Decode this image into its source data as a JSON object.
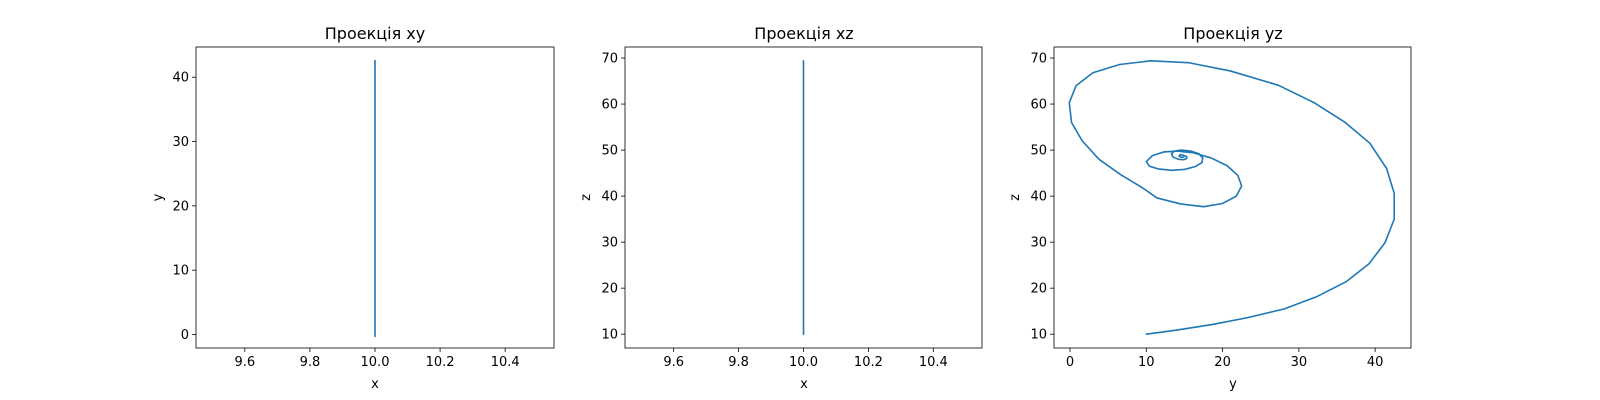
{
  "chart_data": [
    {
      "type": "line",
      "title": "Проекція xy",
      "xlabel": "x",
      "ylabel": "y",
      "xlim": [
        9.45,
        10.55
      ],
      "ylim": [
        -2.1,
        44.7
      ],
      "xticks": [
        9.6,
        9.8,
        10.0,
        10.2,
        10.4
      ],
      "xtick_labels": [
        "9.6",
        "9.8",
        "10.0",
        "10.2",
        "10.4"
      ],
      "yticks": [
        0,
        10,
        20,
        30,
        40
      ],
      "ytick_labels": [
        "0",
        "10",
        "20",
        "30",
        "40"
      ],
      "grid": false,
      "color": "#1f77b4",
      "series": [
        {
          "x": [
            10.0,
            10.0
          ],
          "y": [
            -0.3,
            42.6
          ]
        }
      ]
    },
    {
      "type": "line",
      "title": "Проекція xz",
      "xlabel": "x",
      "ylabel": "z",
      "xlim": [
        9.45,
        10.55
      ],
      "ylim": [
        7.0,
        72.4
      ],
      "xticks": [
        9.6,
        9.8,
        10.0,
        10.2,
        10.4
      ],
      "xtick_labels": [
        "9.6",
        "9.8",
        "10.0",
        "10.2",
        "10.4"
      ],
      "yticks": [
        10,
        20,
        30,
        40,
        50,
        60,
        70
      ],
      "ytick_labels": [
        "10",
        "20",
        "30",
        "40",
        "50",
        "60",
        "70"
      ],
      "grid": false,
      "color": "#1f77b4",
      "series": [
        {
          "x": [
            10.0,
            10.0
          ],
          "y": [
            10.0,
            69.4
          ]
        }
      ]
    },
    {
      "type": "line",
      "title": "Проекція yz",
      "xlabel": "y",
      "ylabel": "z",
      "xlim": [
        -2.1,
        44.7
      ],
      "ylim": [
        7.0,
        72.4
      ],
      "xticks": [
        0,
        10,
        20,
        30,
        40
      ],
      "xtick_labels": [
        "0",
        "10",
        "20",
        "30",
        "40"
      ],
      "yticks": [
        10,
        20,
        30,
        40,
        50,
        60,
        70
      ],
      "ytick_labels": [
        "10",
        "20",
        "30",
        "40",
        "50",
        "60",
        "70"
      ],
      "grid": false,
      "color": "#1f77b4",
      "series": [
        {
          "description_free_points": true,
          "x": [
            10.0,
            14.0,
            18.6,
            23.3,
            28.1,
            32.4,
            36.2,
            39.2,
            41.3,
            42.5,
            42.5,
            41.5,
            39.3,
            36.0,
            32.0,
            27.3,
            21.0,
            15.5,
            10.6,
            6.5,
            3.0,
            0.8,
            -0.1,
            0.2,
            1.6,
            3.8,
            6.7,
            9.5,
            11.4,
            14.5,
            17.5,
            20.0,
            21.8,
            22.5,
            22.0,
            20.6,
            18.5,
            16.2,
            14.0,
            12.3,
            10.8,
            10.0,
            10.4,
            11.6,
            13.3,
            15.0,
            16.4,
            17.3,
            17.4,
            16.9,
            15.8,
            14.6,
            13.7,
            13.3,
            13.5,
            14.2,
            14.9,
            15.3,
            15.3,
            14.8,
            14.4,
            14.3,
            14.6,
            14.9
          ],
          "y": [
            10.0,
            10.9,
            12.1,
            13.6,
            15.5,
            18.2,
            21.4,
            25.3,
            29.9,
            35.0,
            40.6,
            46.0,
            51.5,
            56.1,
            60.3,
            64.1,
            67.2,
            69.0,
            69.4,
            68.6,
            66.8,
            64.0,
            60.3,
            56.0,
            52.0,
            48.0,
            44.6,
            41.8,
            39.6,
            38.3,
            37.7,
            38.4,
            40.0,
            42.2,
            44.5,
            46.6,
            48.3,
            49.4,
            49.8,
            49.6,
            48.8,
            47.5,
            46.5,
            45.9,
            45.6,
            45.8,
            46.4,
            47.3,
            48.3,
            49.2,
            49.8,
            50.0,
            49.8,
            49.2,
            48.5,
            48.0,
            47.9,
            48.2,
            48.6,
            48.9,
            49.0,
            48.7,
            48.4,
            48.5
          ]
        }
      ]
    }
  ]
}
